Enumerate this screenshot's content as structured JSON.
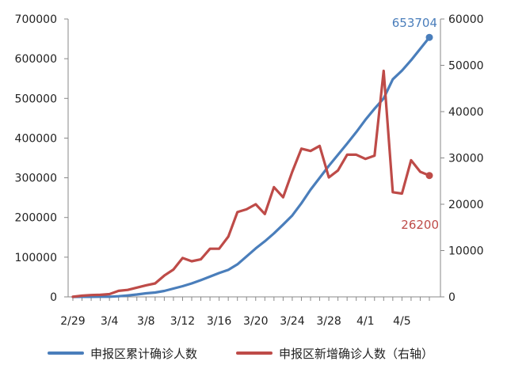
{
  "chart_data": {
    "type": "line",
    "title": "",
    "x": [
      "2/29",
      "3/1",
      "3/2",
      "3/3",
      "3/4",
      "3/5",
      "3/6",
      "3/7",
      "3/8",
      "3/9",
      "3/10",
      "3/11",
      "3/12",
      "3/13",
      "3/14",
      "3/15",
      "3/16",
      "3/17",
      "3/18",
      "3/19",
      "3/20",
      "3/21",
      "3/22",
      "3/23",
      "3/24",
      "3/25",
      "3/26",
      "3/27",
      "3/28",
      "3/29",
      "3/30",
      "3/31",
      "4/1",
      "4/2",
      "4/3",
      "4/4",
      "4/5",
      "4/6",
      "4/7",
      "4/8"
    ],
    "x_tick_labels": [
      "2/29",
      "3/4",
      "3/8",
      "3/12",
      "3/16",
      "3/20",
      "3/24",
      "3/28",
      "4/1",
      "4/5"
    ],
    "y_left": {
      "ylim": [
        0,
        700000
      ],
      "ticks": [
        "0",
        "100000",
        "200000",
        "300000",
        "400000",
        "500000",
        "600000",
        "700000"
      ]
    },
    "y_right": {
      "ylim": [
        0,
        60000
      ],
      "ticks": [
        "0",
        "10000",
        "20000",
        "30000",
        "40000",
        "50000",
        "60000"
      ]
    },
    "series": [
      {
        "name": "申报区累计确诊人数",
        "axis": "left",
        "color": "#4a7ebb",
        "values": [
          50,
          120,
          200,
          300,
          450,
          1500,
          3500,
          6000,
          9000,
          11000,
          15000,
          21000,
          27000,
          34000,
          42000,
          51000,
          60000,
          68000,
          82000,
          102000,
          122000,
          140000,
          160000,
          182000,
          205000,
          236000,
          270000,
          300000,
          330000,
          358000,
          386000,
          415000,
          446000,
          474000,
          500000,
          548000,
          570000,
          596000,
          625000,
          653704
        ],
        "end_label": "653704"
      },
      {
        "name": "申报区新增确诊人数（右轴）",
        "axis": "right",
        "color": "#be4b48",
        "values": [
          10,
          250,
          400,
          450,
          600,
          1300,
          1500,
          2000,
          2500,
          2900,
          4600,
          5900,
          8400,
          7700,
          8100,
          10400,
          10400,
          13000,
          18300,
          18900,
          20000,
          17900,
          23700,
          21500,
          27000,
          32000,
          31500,
          32600,
          25800,
          27300,
          30700,
          30700,
          29800,
          30500,
          48800,
          22600,
          22300,
          29500,
          27000,
          26200
        ],
        "end_label": "26200"
      }
    ],
    "legend_position": "bottom",
    "grid": false
  }
}
